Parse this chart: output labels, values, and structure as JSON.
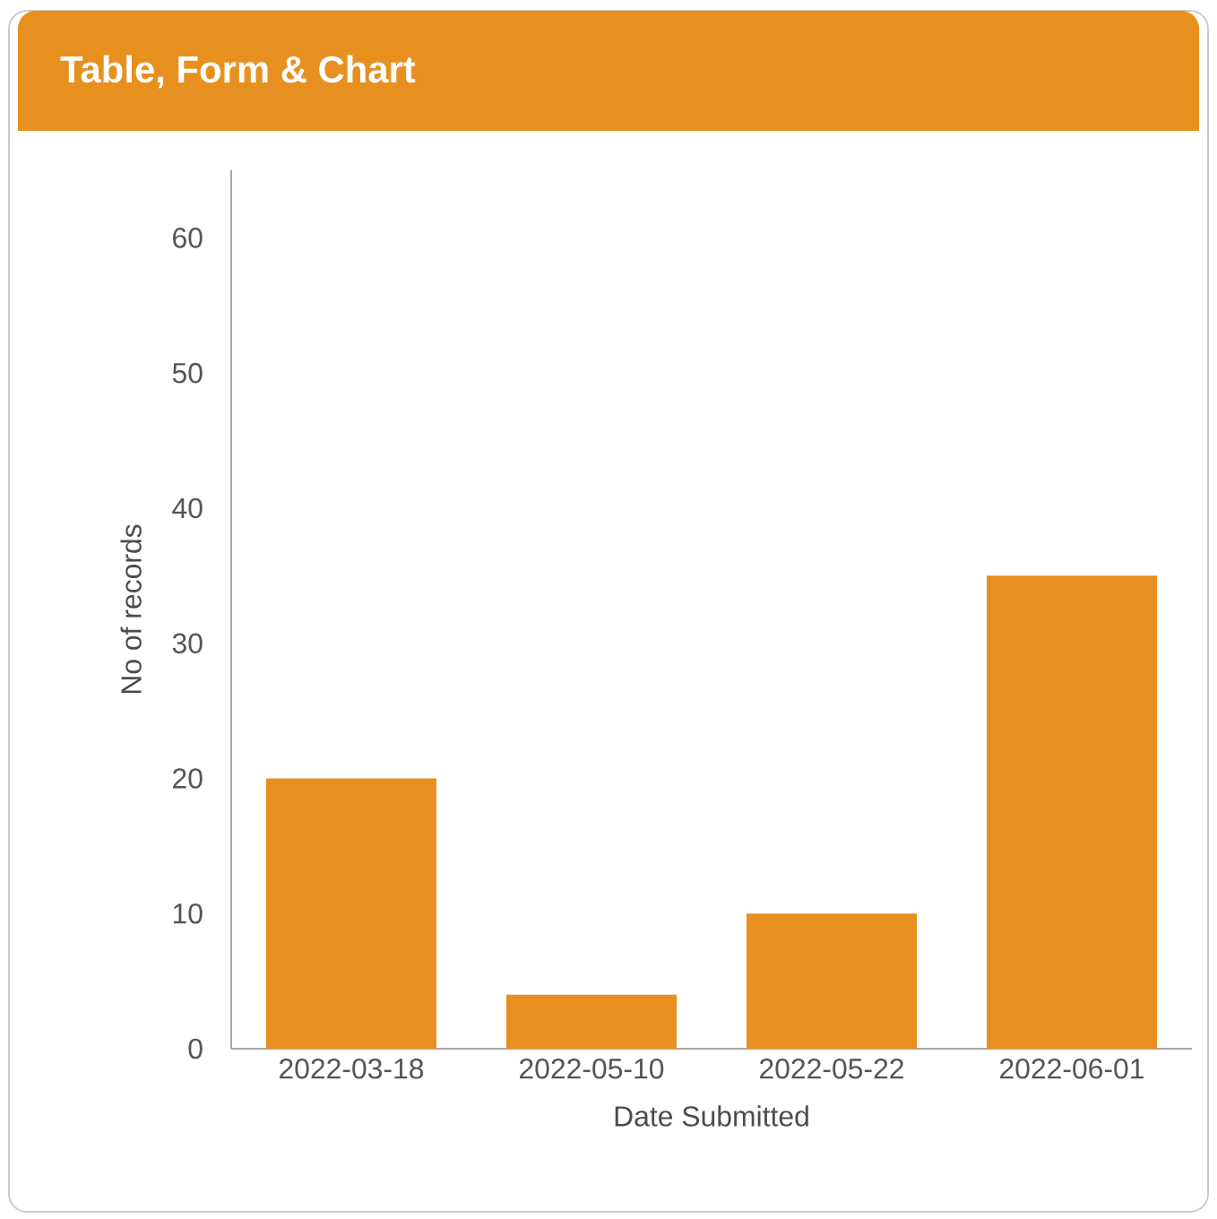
{
  "chart_data": {
    "type": "bar",
    "title": "Table, Form & Chart",
    "xlabel": "Date Submitted",
    "ylabel": "No of records",
    "categories": [
      "2022-03-18",
      "2022-05-10",
      "2022-05-22",
      "2022-06-01"
    ],
    "values": [
      20,
      4,
      10,
      35
    ],
    "color": "#e88f1f",
    "ylim": [
      0,
      65
    ],
    "yticks": [
      0,
      10,
      20,
      30,
      40,
      50,
      60
    ]
  }
}
